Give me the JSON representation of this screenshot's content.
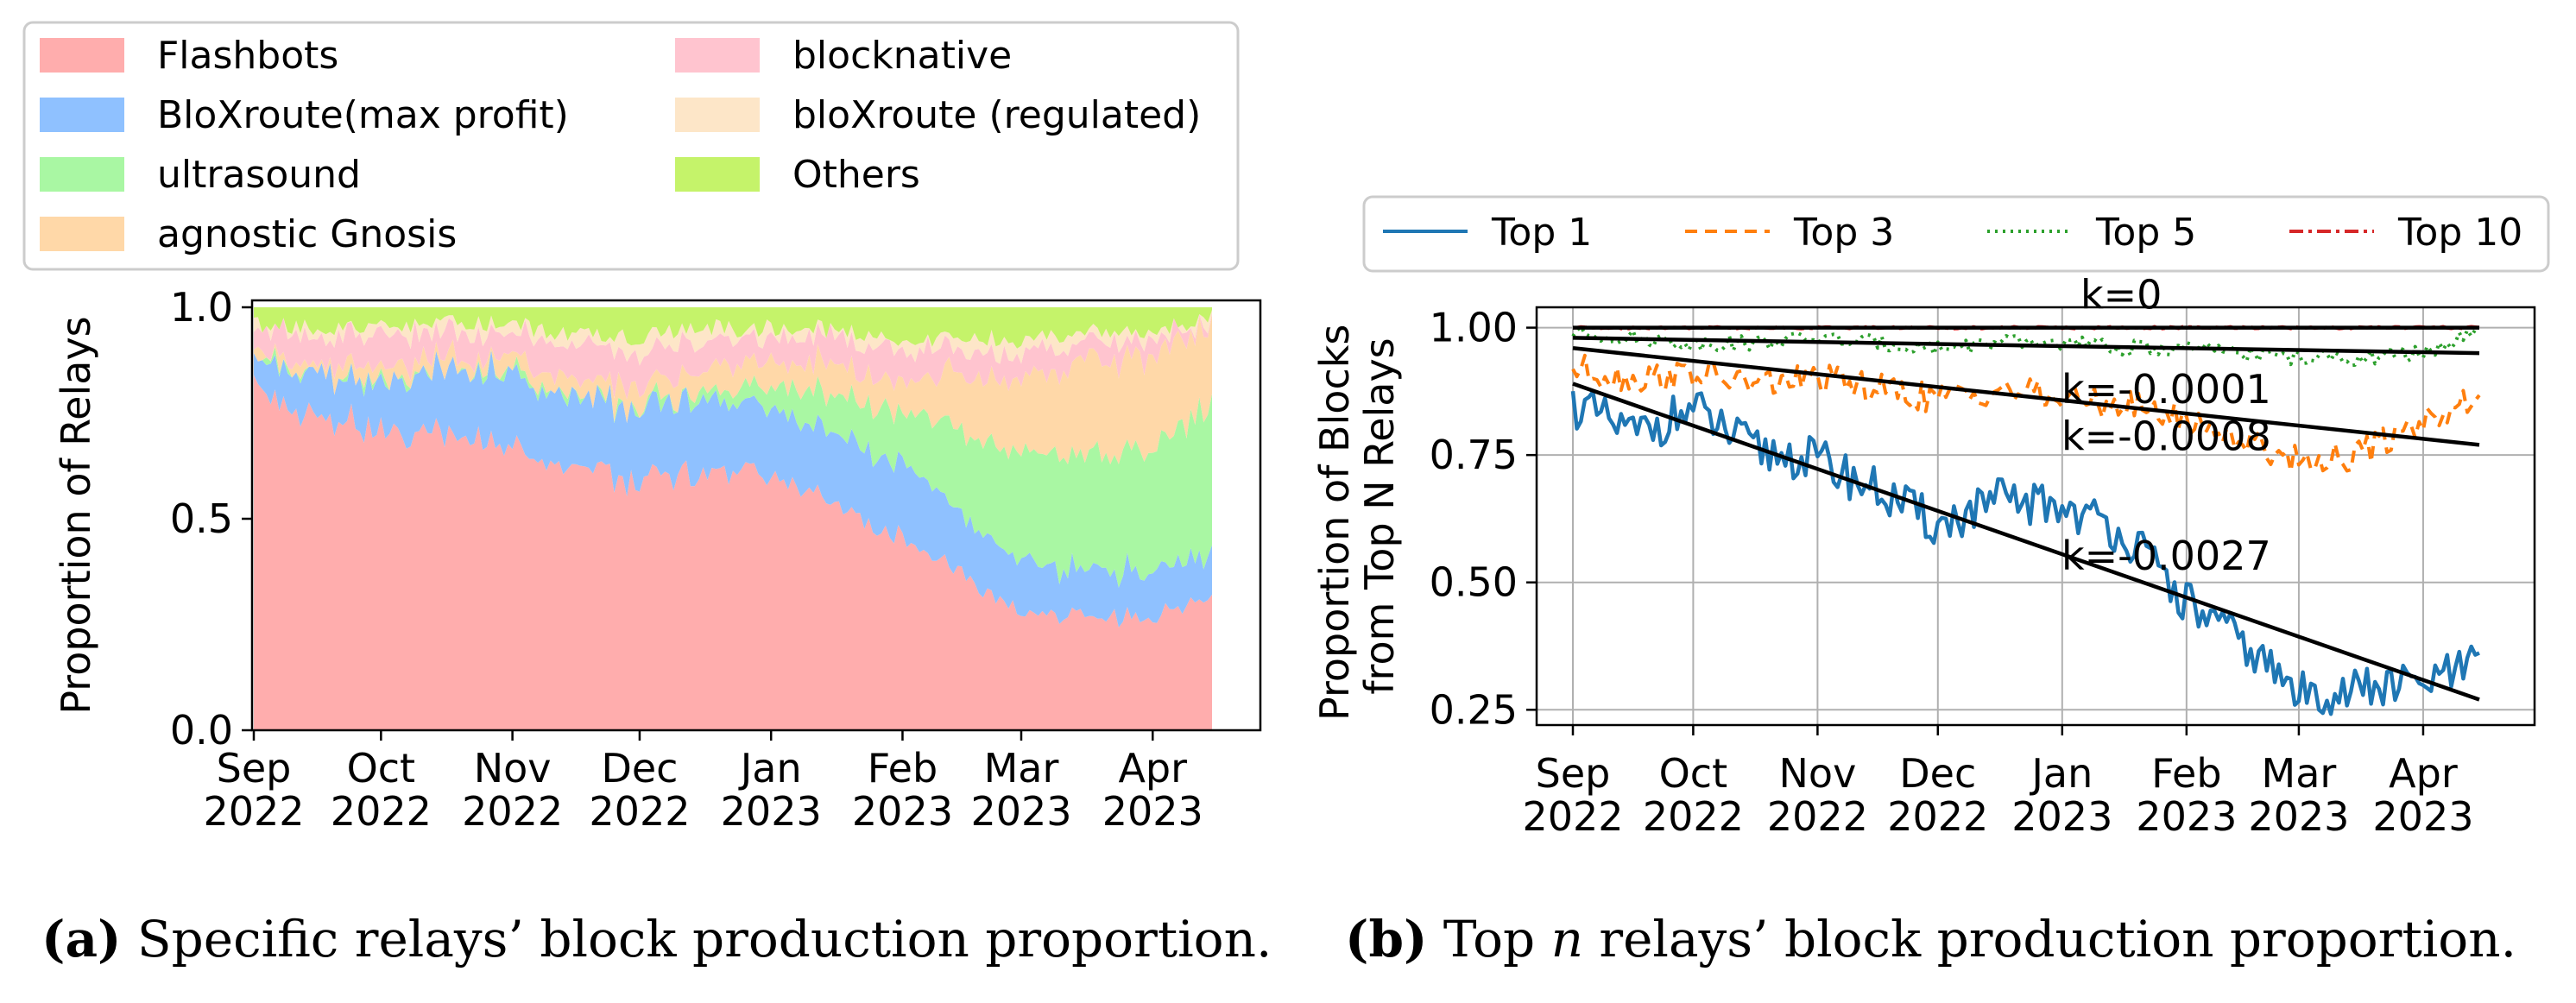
{
  "chart_data": [
    {
      "type": "area",
      "stacked": true,
      "ylabel": "Proportion of Relays",
      "ylim": [
        0,
        1
      ],
      "yticks": [
        {
          "v": 0.0,
          "label": "0.0"
        },
        {
          "v": 0.5,
          "label": "0.5"
        },
        {
          "v": 1.0,
          "label": "1.0"
        }
      ],
      "x_start": "2022-09-01",
      "x_end": "2023-04-15",
      "xticks": [
        {
          "day": 0,
          "label": [
            "Sep",
            "2022"
          ]
        },
        {
          "day": 30,
          "label": [
            "Oct",
            "2022"
          ]
        },
        {
          "day": 61,
          "label": [
            "Nov",
            "2022"
          ]
        },
        {
          "day": 91,
          "label": [
            "Dec",
            "2022"
          ]
        },
        {
          "day": 122,
          "label": [
            "Jan",
            "2023"
          ]
        },
        {
          "day": 153,
          "label": [
            "Feb",
            "2023"
          ]
        },
        {
          "day": 181,
          "label": [
            "Mar",
            "2023"
          ]
        },
        {
          "day": 212,
          "label": [
            "Apr",
            "2023"
          ]
        }
      ],
      "sample_days": [
        0,
        15,
        30,
        45,
        61,
        76,
        91,
        106,
        122,
        137,
        153,
        167,
        181,
        196,
        212,
        226
      ],
      "series": [
        {
          "name": "Flashbots",
          "color": "#ffadad",
          "values": [
            0.8,
            0.76,
            0.71,
            0.7,
            0.68,
            0.62,
            0.6,
            0.61,
            0.6,
            0.54,
            0.46,
            0.37,
            0.28,
            0.26,
            0.27,
            0.31
          ]
        },
        {
          "name": "BloXroute(max profit)",
          "color": "#8fc1ff",
          "values": [
            0.07,
            0.1,
            0.12,
            0.15,
            0.17,
            0.16,
            0.17,
            0.17,
            0.16,
            0.17,
            0.18,
            0.14,
            0.12,
            0.11,
            0.11,
            0.1
          ]
        },
        {
          "name": "ultrasound",
          "color": "#a9f7a3",
          "values": [
            0.0,
            0.0,
            0.0,
            0.0,
            0.0,
            0.0,
            0.0,
            0.02,
            0.05,
            0.08,
            0.12,
            0.2,
            0.26,
            0.27,
            0.29,
            0.36
          ]
        },
        {
          "name": "agnostic Gnosis",
          "color": "#ffd8a8",
          "values": [
            0.02,
            0.02,
            0.03,
            0.03,
            0.03,
            0.04,
            0.05,
            0.05,
            0.06,
            0.07,
            0.07,
            0.13,
            0.17,
            0.22,
            0.22,
            0.19
          ]
        },
        {
          "name": "blocknative",
          "color": "#ffc4cf",
          "values": [
            0.06,
            0.06,
            0.07,
            0.06,
            0.06,
            0.08,
            0.08,
            0.07,
            0.06,
            0.07,
            0.07,
            0.06,
            0.06,
            0.05,
            0.03,
            0.01
          ]
        },
        {
          "name": "bloXroute (regulated)",
          "color": "#fde6c8",
          "values": [
            0.01,
            0.01,
            0.02,
            0.02,
            0.02,
            0.03,
            0.03,
            0.03,
            0.02,
            0.02,
            0.02,
            0.03,
            0.03,
            0.03,
            0.02,
            0.01
          ]
        },
        {
          "name": "Others",
          "color": "#c5f36a",
          "values": [
            0.04,
            0.05,
            0.05,
            0.04,
            0.04,
            0.07,
            0.07,
            0.05,
            0.05,
            0.05,
            0.08,
            0.07,
            0.08,
            0.06,
            0.06,
            0.02
          ]
        }
      ],
      "caption_bold": "(a)",
      "caption_text": " Specific relays’ block production proportion."
    },
    {
      "type": "line",
      "ylabel_lines": [
        "Proportion of Blocks",
        "from Top N Relays"
      ],
      "ylim": [
        0.22,
        1.04
      ],
      "yticks": [
        {
          "v": 0.25,
          "label": "0.25"
        },
        {
          "v": 0.5,
          "label": "0.50"
        },
        {
          "v": 0.75,
          "label": "0.75"
        },
        {
          "v": 1.0,
          "label": "1.00"
        }
      ],
      "x_start": "2022-09-01",
      "x_end": "2023-04-15",
      "xticks": [
        {
          "day": 0,
          "label": [
            "Sep",
            "2022"
          ]
        },
        {
          "day": 30,
          "label": [
            "Oct",
            "2022"
          ]
        },
        {
          "day": 61,
          "label": [
            "Nov",
            "2022"
          ]
        },
        {
          "day": 91,
          "label": [
            "Dec",
            "2022"
          ]
        },
        {
          "day": 122,
          "label": [
            "Jan",
            "2023"
          ]
        },
        {
          "day": 153,
          "label": [
            "Feb",
            "2023"
          ]
        },
        {
          "day": 181,
          "label": [
            "Mar",
            "2023"
          ]
        },
        {
          "day": 212,
          "label": [
            "Apr",
            "2023"
          ]
        }
      ],
      "sample_days": [
        0,
        15,
        30,
        45,
        61,
        76,
        91,
        106,
        122,
        137,
        153,
        167,
        181,
        196,
        212,
        226
      ],
      "series": [
        {
          "name": "Top 1",
          "color": "#1f77b4",
          "dash": "none",
          "values": [
            0.85,
            0.79,
            0.84,
            0.76,
            0.74,
            0.68,
            0.61,
            0.66,
            0.65,
            0.6,
            0.46,
            0.38,
            0.28,
            0.29,
            0.3,
            0.34
          ]
        },
        {
          "name": "Top 3",
          "color": "#ff7f0e",
          "dash": "14,9",
          "values": [
            0.92,
            0.9,
            0.91,
            0.89,
            0.9,
            0.88,
            0.86,
            0.88,
            0.86,
            0.85,
            0.82,
            0.78,
            0.74,
            0.75,
            0.82,
            0.86
          ]
        },
        {
          "name": "Top 5",
          "color": "#2ca02c",
          "dash": "3,6",
          "values": [
            0.99,
            0.98,
            0.97,
            0.97,
            0.98,
            0.97,
            0.96,
            0.97,
            0.97,
            0.96,
            0.96,
            0.95,
            0.94,
            0.94,
            0.95,
            0.99
          ]
        },
        {
          "name": "Top 10",
          "color": "#d62728",
          "dash": "16,6,4,6",
          "values": [
            1.0,
            1.0,
            1.0,
            1.0,
            1.0,
            1.0,
            1.0,
            1.0,
            1.0,
            1.0,
            1.0,
            1.0,
            1.0,
            1.0,
            1.0,
            1.0
          ]
        }
      ],
      "trendlines": [
        {
          "slope_label": "k=0",
          "y_start": 1.0,
          "y_end": 1.0
        },
        {
          "slope_label": "k=-0.0001",
          "y_start": 0.98,
          "y_end": 0.95
        },
        {
          "slope_label": "k=-0.0008",
          "y_start": 0.96,
          "y_end": 0.77
        },
        {
          "slope_label": "k=-0.0027",
          "y_start": 0.89,
          "y_end": 0.27
        }
      ],
      "caption_bold": "(b)",
      "caption_pre": " Top ",
      "caption_italic": "n",
      "caption_post": " relays’ block production proportion."
    }
  ]
}
